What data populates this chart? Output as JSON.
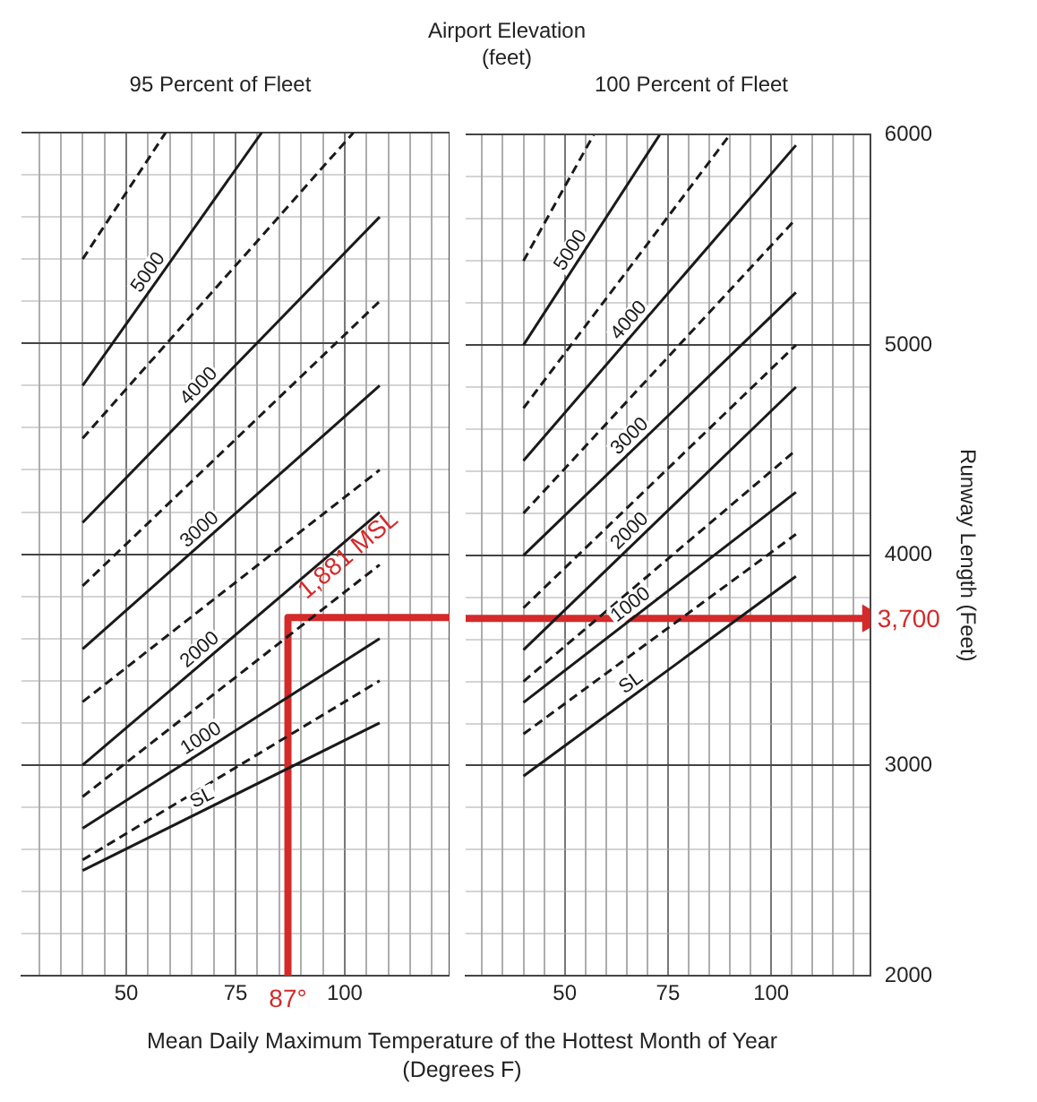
{
  "chart_data": [
    {
      "type": "line",
      "subtitle": "95 Percent of Fleet",
      "xlabel": "Mean Daily Maximum Temperature of the Hottest Month of Year (Degrees F)",
      "xlim": [
        26,
        124
      ],
      "ylim": [
        2000,
        6000
      ],
      "xticks": [
        {
          "value": 30,
          "label": null
        },
        {
          "value": 35,
          "label": null
        },
        {
          "value": 40,
          "label": null
        },
        {
          "value": 45,
          "label": null
        },
        50,
        {
          "value": 55,
          "label": null
        },
        {
          "value": 60,
          "label": null
        },
        {
          "value": 65,
          "label": null
        },
        {
          "value": 70,
          "label": null
        },
        75,
        {
          "value": 80,
          "label": null
        },
        {
          "value": 85,
          "label": null
        },
        {
          "value": 90,
          "label": null
        },
        {
          "value": 95,
          "label": null
        },
        100,
        {
          "value": 105,
          "label": null
        },
        {
          "value": 110,
          "label": null
        },
        {
          "value": 115,
          "label": null
        },
        {
          "value": 120,
          "label": null
        }
      ],
      "yticks": [
        2000,
        {
          "value": 2200,
          "label": null
        },
        {
          "value": 2400,
          "label": null
        },
        {
          "value": 2600,
          "label": null
        },
        {
          "value": 2800,
          "label": null
        },
        3000,
        {
          "value": 3200,
          "label": null
        },
        {
          "value": 3400,
          "label": null
        },
        {
          "value": 3600,
          "label": null
        },
        {
          "value": 3800,
          "label": null
        },
        4000,
        {
          "value": 4200,
          "label": null
        },
        {
          "value": 4400,
          "label": null
        },
        {
          "value": 4600,
          "label": null
        },
        {
          "value": 4800,
          "label": null
        },
        5000,
        {
          "value": 5200,
          "label": null
        },
        {
          "value": 5400,
          "label": null
        },
        {
          "value": 5600,
          "label": null
        },
        {
          "value": 5800,
          "label": null
        },
        6000
      ],
      "tick_labels": "x",
      "grid": true,
      "legend": false,
      "series": [
        {
          "name": "SL",
          "color": "#1a1a1a",
          "line_style": "solid",
          "x": [
            40,
            108
          ],
          "values": [
            2500,
            3200
          ]
        },
        {
          "color": "#1a1a1a",
          "line_style": "dashed",
          "x": [
            40,
            108
          ],
          "values": [
            2550,
            3400
          ]
        },
        {
          "name": "1000",
          "color": "#1a1a1a",
          "line_style": "solid",
          "x": [
            40,
            108
          ],
          "values": [
            2700,
            3600
          ]
        },
        {
          "color": "#1a1a1a",
          "line_style": "dashed",
          "x": [
            40,
            108
          ],
          "values": [
            2850,
            3950
          ]
        },
        {
          "name": "2000",
          "color": "#1a1a1a",
          "line_style": "solid",
          "x": [
            40,
            108
          ],
          "values": [
            3000,
            4200
          ]
        },
        {
          "color": "#1a1a1a",
          "line_style": "dashed",
          "x": [
            40,
            108
          ],
          "values": [
            3300,
            4400
          ]
        },
        {
          "name": "3000",
          "color": "#1a1a1a",
          "line_style": "solid",
          "x": [
            40,
            108
          ],
          "values": [
            3550,
            4800
          ]
        },
        {
          "color": "#1a1a1a",
          "line_style": "dashed",
          "x": [
            40,
            108
          ],
          "values": [
            3850,
            5200
          ]
        },
        {
          "name": "4000",
          "color": "#1a1a1a",
          "line_style": "solid",
          "x": [
            40,
            108
          ],
          "values": [
            4150,
            5600
          ]
        },
        {
          "color": "#1a1a1a",
          "line_style": "dashed",
          "x": [
            40,
            102
          ],
          "values": [
            4550,
            6000
          ]
        },
        {
          "name": "5000",
          "color": "#1a1a1a",
          "line_style": "solid",
          "x": [
            40,
            81
          ],
          "values": [
            4800,
            6000
          ]
        },
        {
          "color": "#1a1a1a",
          "line_style": "dashed",
          "x": [
            40,
            59
          ],
          "values": [
            5400,
            6000
          ]
        },
        {
          "color": "#d42a2a",
          "x": [
            87,
            87,
            124
          ],
          "values": [
            2000,
            3700,
            3700
          ]
        }
      ],
      "annotations": [
        "1,881 MSL",
        {
          "text": "87°",
          "x": 87,
          "y": 2000
        }
      ]
    },
    {
      "type": "line",
      "title": "Airport Elevation (feet)",
      "subtitle": "100 Percent of Fleet",
      "ylabel": "Runway Length (Feet)",
      "xlim": [
        26,
        124
      ],
      "ylim": [
        2000,
        6000
      ],
      "xticks": [
        {
          "value": 30,
          "label": null
        },
        {
          "value": 35,
          "label": null
        },
        {
          "value": 40,
          "label": null
        },
        {
          "value": 45,
          "label": null
        },
        50,
        {
          "value": 55,
          "label": null
        },
        {
          "value": 60,
          "label": null
        },
        {
          "value": 65,
          "label": null
        },
        {
          "value": 70,
          "label": null
        },
        75,
        {
          "value": 80,
          "label": null
        },
        {
          "value": 85,
          "label": null
        },
        {
          "value": 90,
          "label": null
        },
        {
          "value": 95,
          "label": null
        },
        100,
        {
          "value": 105,
          "label": null
        },
        {
          "value": 110,
          "label": null
        },
        {
          "value": 115,
          "label": null
        },
        {
          "value": 120,
          "label": null
        }
      ],
      "yticks": [
        2000,
        {
          "value": 2200,
          "label": null
        },
        {
          "value": 2400,
          "label": null
        },
        {
          "value": 2600,
          "label": null
        },
        {
          "value": 2800,
          "label": null
        },
        3000,
        {
          "value": 3200,
          "label": null
        },
        {
          "value": 3400,
          "label": null
        },
        {
          "value": 3600,
          "label": null
        },
        {
          "value": 3800,
          "label": null
        },
        4000,
        {
          "value": 4200,
          "label": null
        },
        {
          "value": 4400,
          "label": null
        },
        {
          "value": 4600,
          "label": null
        },
        {
          "value": 4800,
          "label": null
        },
        5000,
        {
          "value": 5200,
          "label": null
        },
        {
          "value": 5400,
          "label": null
        },
        {
          "value": 5600,
          "label": null
        },
        {
          "value": 5800,
          "label": null
        },
        6000
      ],
      "grid": true,
      "legend": false,
      "series": [
        {
          "name": "SL",
          "color": "#1a1a1a",
          "line_style": "solid",
          "x": [
            40,
            106
          ],
          "values": [
            2950,
            3900
          ]
        },
        {
          "color": "#1a1a1a",
          "line_style": "dashed",
          "x": [
            40,
            106
          ],
          "values": [
            3150,
            4100
          ]
        },
        {
          "name": "1000",
          "color": "#1a1a1a",
          "line_style": "solid",
          "x": [
            40,
            106
          ],
          "values": [
            3300,
            4300
          ]
        },
        {
          "color": "#1a1a1a",
          "line_style": "dashed",
          "x": [
            40,
            106
          ],
          "values": [
            3400,
            4500
          ]
        },
        {
          "name": "2000",
          "color": "#1a1a1a",
          "line_style": "solid",
          "x": [
            40,
            106
          ],
          "values": [
            3550,
            4800
          ]
        },
        {
          "color": "#1a1a1a",
          "line_style": "dashed",
          "x": [
            40,
            106
          ],
          "values": [
            3750,
            5000
          ]
        },
        {
          "name": "3000",
          "color": "#1a1a1a",
          "line_style": "solid",
          "x": [
            40,
            106
          ],
          "values": [
            4000,
            5250
          ]
        },
        {
          "color": "#1a1a1a",
          "line_style": "dashed",
          "x": [
            40,
            106
          ],
          "values": [
            4200,
            5600
          ]
        },
        {
          "name": "4000",
          "color": "#1a1a1a",
          "line_style": "solid",
          "x": [
            40,
            106
          ],
          "values": [
            4450,
            5950
          ]
        },
        {
          "color": "#1a1a1a",
          "line_style": "dashed",
          "x": [
            40,
            90
          ],
          "values": [
            4700,
            6000
          ]
        },
        {
          "name": "5000",
          "color": "#1a1a1a",
          "line_style": "solid",
          "x": [
            40,
            73
          ],
          "values": [
            5000,
            6000
          ]
        },
        {
          "color": "#1a1a1a",
          "line_style": "dashed",
          "x": [
            40,
            57
          ],
          "values": [
            5400,
            6000
          ]
        },
        {
          "color": "#d42a2a",
          "x": [
            26,
            124
          ],
          "values": [
            3700,
            3700
          ]
        }
      ],
      "annotations": [
        {
          "text": "3,700",
          "x": 124,
          "y": 3700
        }
      ]
    }
  ]
}
